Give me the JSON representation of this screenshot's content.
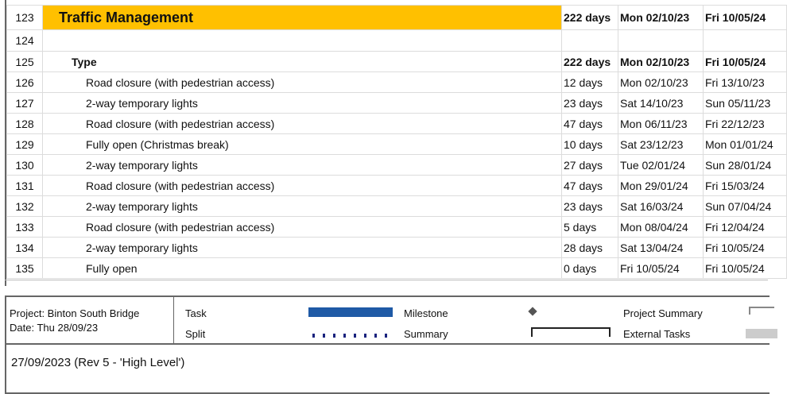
{
  "rows": [
    {
      "id": "123",
      "name": "Traffic Management",
      "duration": "222 days",
      "start": "Mon 02/10/23",
      "finish": "Fri 10/05/24"
    },
    {
      "id": "124",
      "name": "",
      "duration": "",
      "start": "",
      "finish": ""
    },
    {
      "id": "125",
      "name": "Type",
      "duration": "222 days",
      "start": "Mon 02/10/23",
      "finish": "Fri 10/05/24"
    },
    {
      "id": "126",
      "name": "Road closure (with pedestrian access)",
      "duration": "12 days",
      "start": "Mon 02/10/23",
      "finish": "Fri 13/10/23"
    },
    {
      "id": "127",
      "name": "2-way temporary lights",
      "duration": "23 days",
      "start": "Sat 14/10/23",
      "finish": "Sun 05/11/23"
    },
    {
      "id": "128",
      "name": "Road closure (with pedestrian access)",
      "duration": "47 days",
      "start": "Mon 06/11/23",
      "finish": "Fri 22/12/23"
    },
    {
      "id": "129",
      "name": "Fully open (Christmas break)",
      "duration": "10 days",
      "start": "Sat 23/12/23",
      "finish": "Mon 01/01/24"
    },
    {
      "id": "130",
      "name": "2-way temporary lights",
      "duration": "27 days",
      "start": "Tue 02/01/24",
      "finish": "Sun 28/01/24"
    },
    {
      "id": "131",
      "name": "Road closure (with pedestrian access)",
      "duration": "47 days",
      "start": "Mon 29/01/24",
      "finish": "Fri 15/03/24"
    },
    {
      "id": "132",
      "name": "2-way temporary lights",
      "duration": "23 days",
      "start": "Sat 16/03/24",
      "finish": "Sun 07/04/24"
    },
    {
      "id": "133",
      "name": "Road closure (with pedestrian access)",
      "duration": "5 days",
      "start": "Mon 08/04/24",
      "finish": "Fri 12/04/24"
    },
    {
      "id": "134",
      "name": "2-way temporary lights",
      "duration": "28 days",
      "start": "Sat 13/04/24",
      "finish": "Fri 10/05/24"
    },
    {
      "id": "135",
      "name": "Fully open",
      "duration": "0 days",
      "start": "Fri 10/05/24",
      "finish": "Fri 10/05/24"
    }
  ],
  "legend": {
    "project": "Project: Binton South Bridge",
    "date": "Date: Thu 28/09/23",
    "task": "Task",
    "split": "Split",
    "milestone": "Milestone",
    "summary": "Summary",
    "project_summary": "Project Summary",
    "external_tasks": "External Tasks",
    "colors": {
      "task": "#1f5aa6",
      "split": "#1a237e",
      "milestone": "#555555",
      "external": "#cccccc",
      "highlight": "#ffc000"
    }
  },
  "note": "27/09/2023 (Rev 5 - 'High Level')"
}
